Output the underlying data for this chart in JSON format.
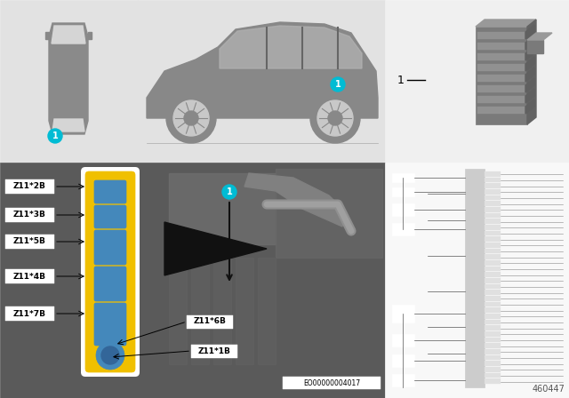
{
  "bg_color": "#ffffff",
  "top_panel_bg": "#e0e0e0",
  "top_divider_color": "#cccccc",
  "car_body_color": "#888888",
  "car_window_color": "#c8c8c8",
  "car_roof_color": "#d8d8d8",
  "wheel_outer": "#888888",
  "wheel_inner": "#c0c0c0",
  "teal_circle_color": "#00bcd4",
  "part_panel_bg": "#f5f5f5",
  "part_color": "#888888",
  "part_rib_color": "#aaaaaa",
  "engine_bay_bg": "#6a6a6a",
  "strip_white": "#ffffff",
  "strip_yellow": "#f5d000",
  "connector_blue": "#4488bb",
  "label_box_bg": "#ffffff",
  "wiring_bg": "#f5f5f5",
  "wiring_line_color": "#555555",
  "wiring_box_color": "#cccccc",
  "connector_labels": [
    "Z11*2B",
    "Z11*3B",
    "Z11*5B",
    "Z11*4B",
    "Z11*7B"
  ],
  "bottom_label": "EO00000004017",
  "bottom_right_num": "460447",
  "part_ref": "1"
}
